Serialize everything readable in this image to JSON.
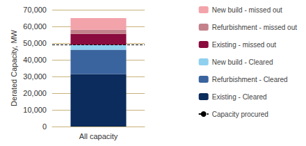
{
  "chart_data": {
    "type": "bar",
    "stacked": true,
    "ylabel": "Derated Capacity, MW",
    "categories": [
      "All capacity"
    ],
    "series": [
      {
        "name": "Existing - Cleared",
        "color": "#0b2c5c",
        "values": [
          31500
        ]
      },
      {
        "name": "Refurbishment - Cleared",
        "color": "#3a649e",
        "values": [
          14500
        ]
      },
      {
        "name": "New build - Cleared",
        "color": "#8fd0ef",
        "values": [
          3000
        ]
      },
      {
        "name": "Existing - missed out",
        "color": "#8a0b3d",
        "values": [
          6500
        ]
      },
      {
        "name": "Refurbishment - missed out",
        "color": "#c3818b",
        "values": [
          2500
        ]
      },
      {
        "name": "New build - missed out",
        "color": "#f3a3aa",
        "values": [
          7000
        ]
      },
      {
        "name": "Capacity procured",
        "type": "line",
        "line_style": "dashed",
        "color": "#000000",
        "values": [
          49000
        ]
      }
    ],
    "ylim": [
      0,
      70000
    ],
    "yticks": [
      0,
      {
        "value": 10000,
        "label": "10,000"
      },
      {
        "value": 20000,
        "label": "20,000"
      },
      {
        "value": 30000,
        "label": "30,000"
      },
      {
        "value": 40000,
        "label": "40,000"
      },
      {
        "value": 50000,
        "label": "50,000"
      },
      {
        "value": 60000,
        "label": "60,000"
      },
      {
        "value": 70000,
        "label": "70,000"
      }
    ],
    "grid": true,
    "legend": "right"
  }
}
